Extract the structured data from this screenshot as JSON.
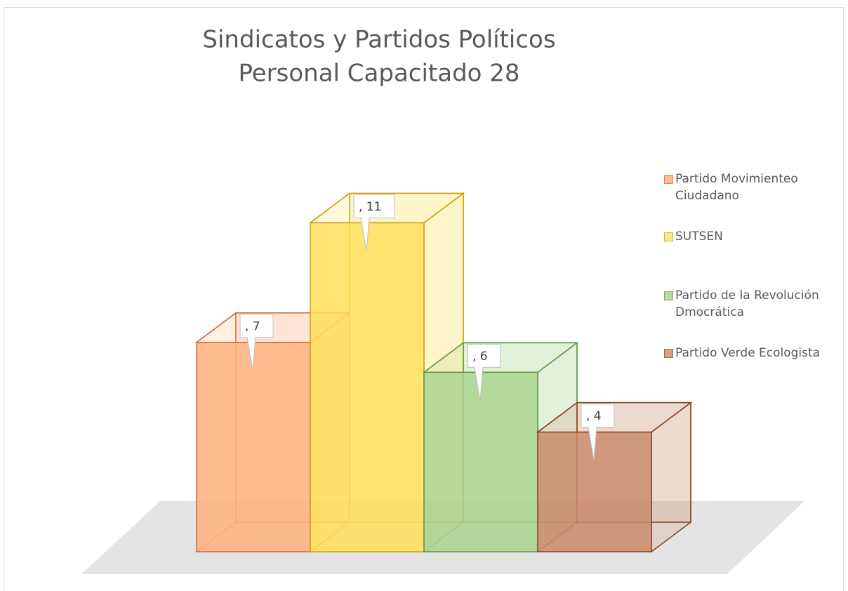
{
  "chart_data": {
    "type": "bar3d",
    "title": "Sindicatos y Partidos Políticos",
    "subtitle": "Personal Capacitado 28",
    "categories": [
      "Partido Movimienteo Ciudadano",
      "SUTSEN",
      "Partido de la Revolución Dmocrática",
      "Partido Verde Ecologista"
    ],
    "values": [
      7,
      11,
      6,
      4
    ],
    "value_labels": [
      ", 7",
      ", 11",
      ", 6",
      ", 4"
    ],
    "colors": [
      "#ffb07c",
      "#ffdf5a",
      "#a9d48e",
      "#c98a6a"
    ],
    "edge_colors": [
      "#d9662a",
      "#c9a10a",
      "#5f9a3e",
      "#8a4422"
    ],
    "legend": "right"
  }
}
